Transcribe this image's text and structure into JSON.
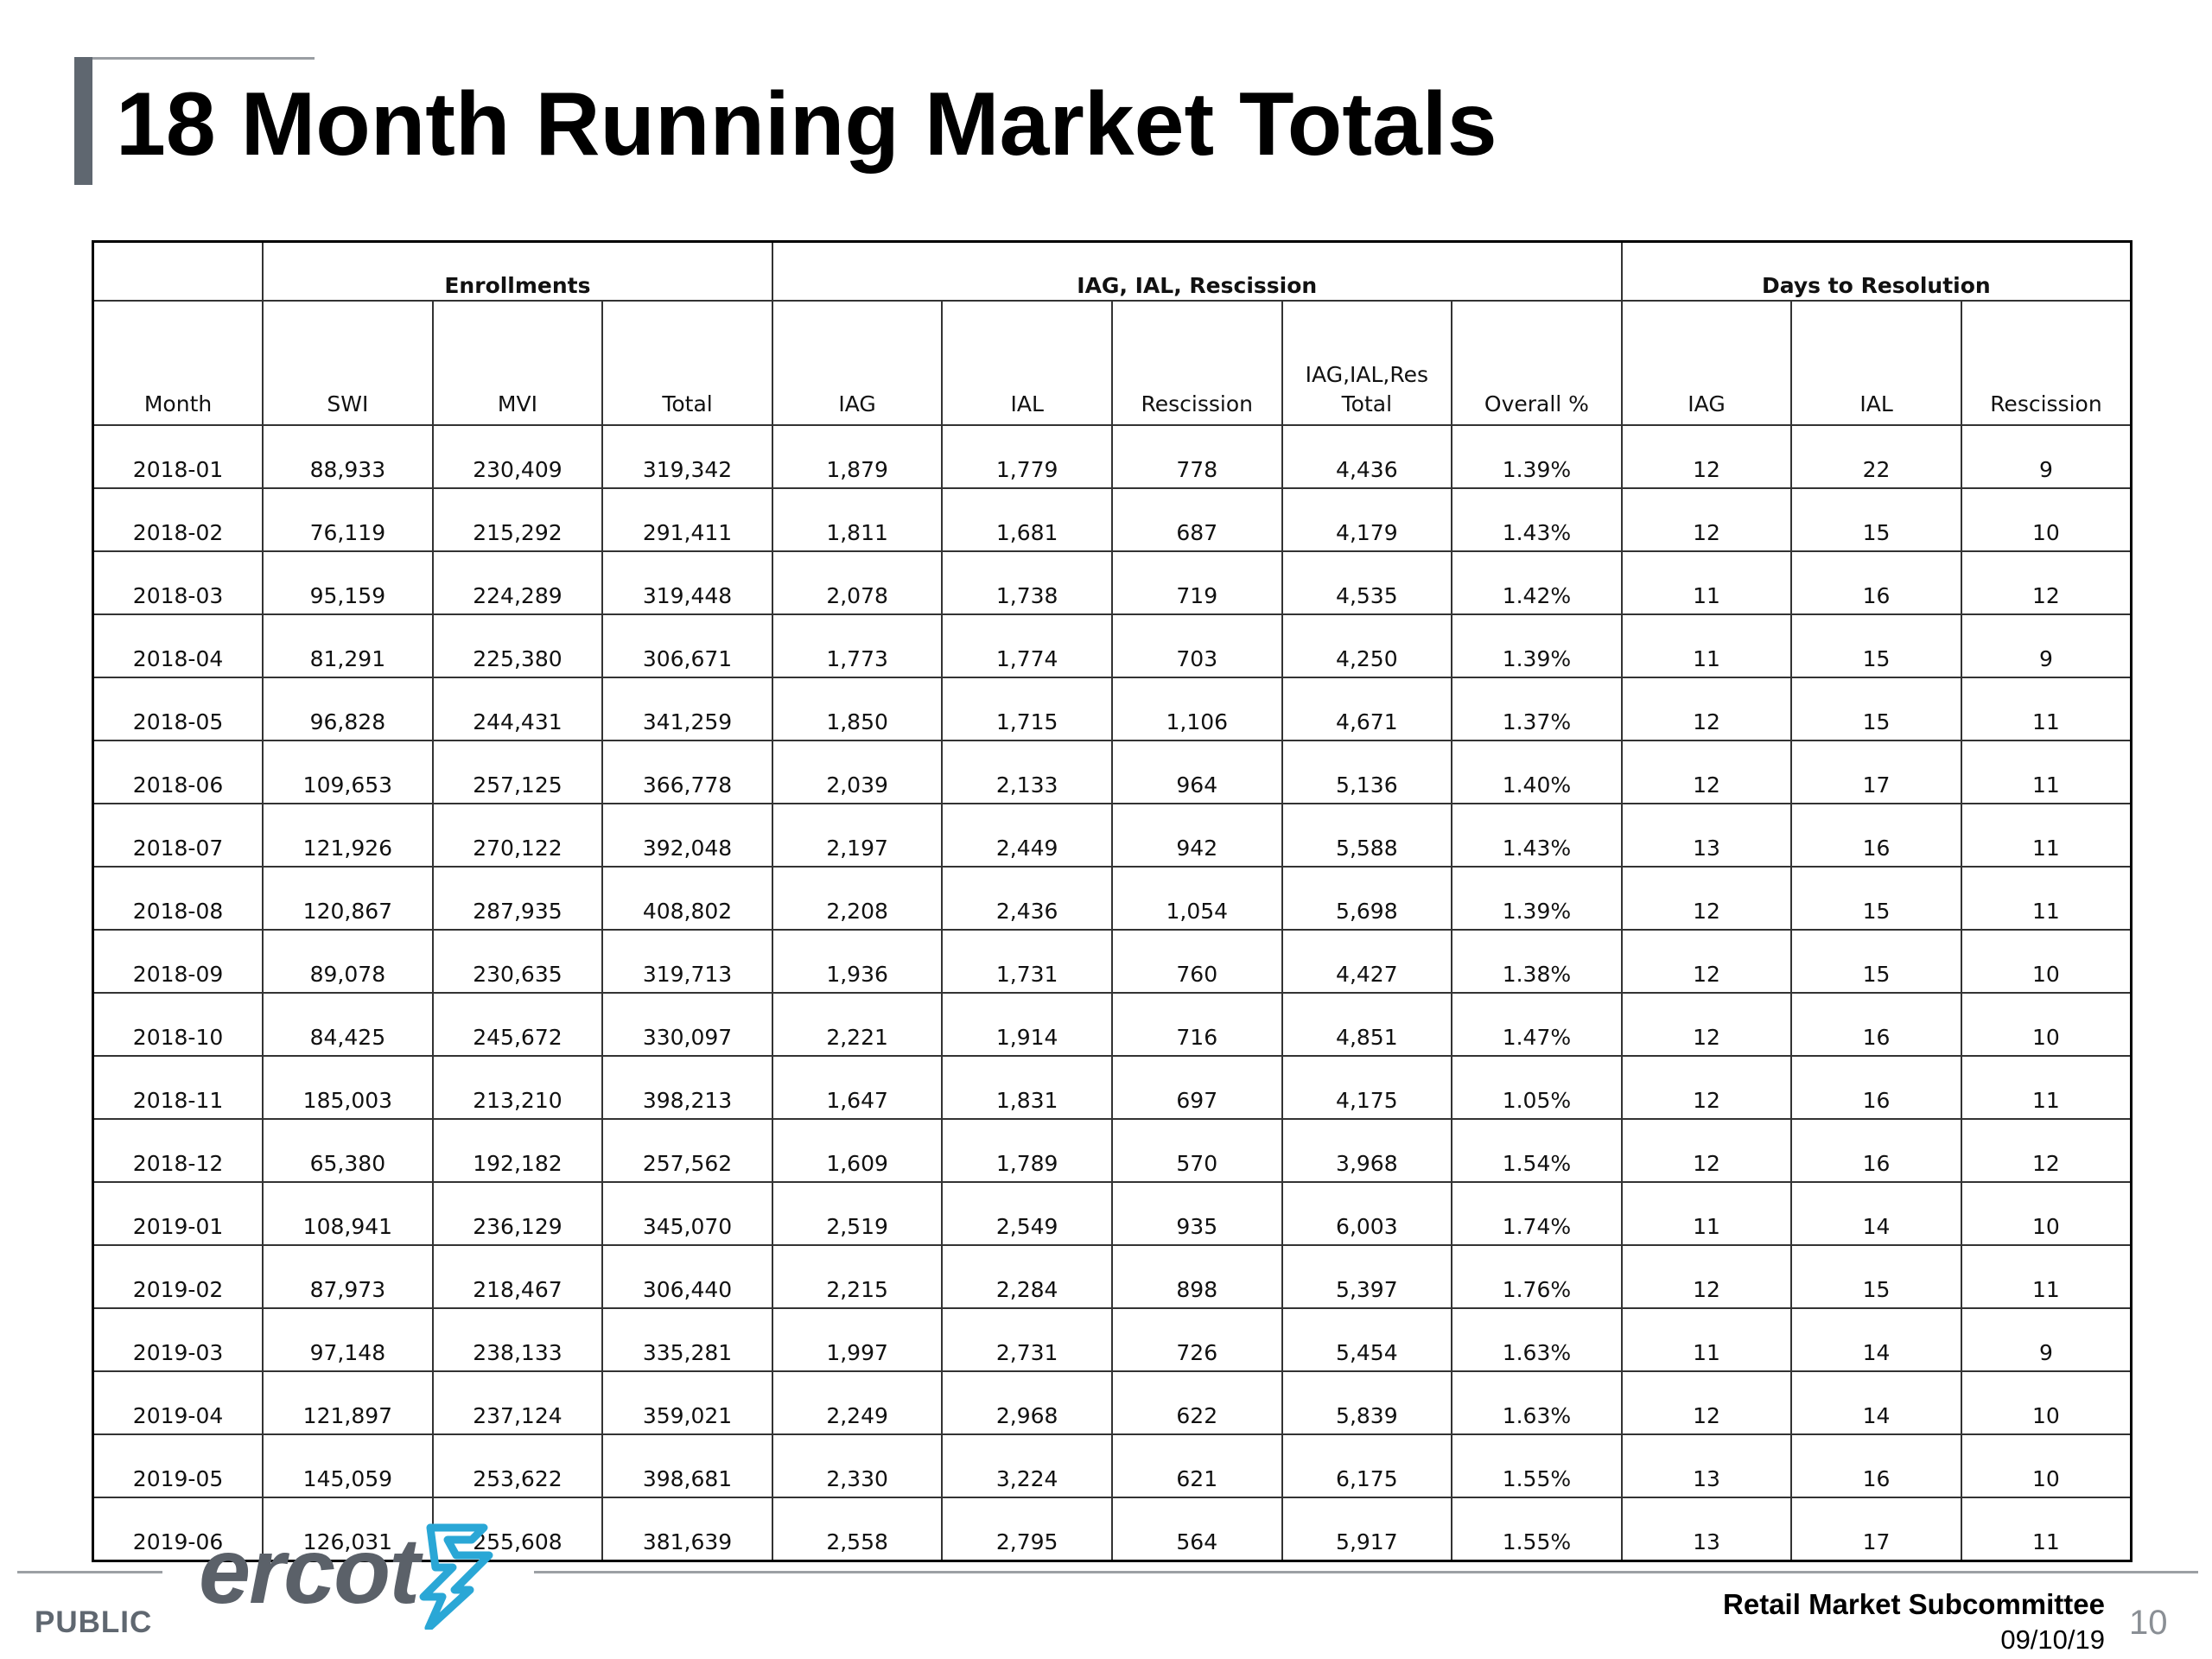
{
  "header": {
    "title": "18 Month Running Market Totals"
  },
  "table": {
    "groups": [
      {
        "label": "",
        "span": 1
      },
      {
        "label": "Enrollments",
        "span": 3
      },
      {
        "label": "IAG, IAL, Rescission",
        "span": 5
      },
      {
        "label": "Days to Resolution",
        "span": 3
      }
    ],
    "columns": [
      "Month",
      "SWI",
      "MVI",
      "Total",
      "IAG",
      "IAL",
      "Rescission",
      "IAG,IAL,Res\nTotal",
      "Overall %",
      "IAG",
      "IAL",
      "Rescission"
    ],
    "rows": [
      [
        "2018-01",
        "88,933",
        "230,409",
        "319,342",
        "1,879",
        "1,779",
        "778",
        "4,436",
        "1.39%",
        "12",
        "22",
        "9"
      ],
      [
        "2018-02",
        "76,119",
        "215,292",
        "291,411",
        "1,811",
        "1,681",
        "687",
        "4,179",
        "1.43%",
        "12",
        "15",
        "10"
      ],
      [
        "2018-03",
        "95,159",
        "224,289",
        "319,448",
        "2,078",
        "1,738",
        "719",
        "4,535",
        "1.42%",
        "11",
        "16",
        "12"
      ],
      [
        "2018-04",
        "81,291",
        "225,380",
        "306,671",
        "1,773",
        "1,774",
        "703",
        "4,250",
        "1.39%",
        "11",
        "15",
        "9"
      ],
      [
        "2018-05",
        "96,828",
        "244,431",
        "341,259",
        "1,850",
        "1,715",
        "1,106",
        "4,671",
        "1.37%",
        "12",
        "15",
        "11"
      ],
      [
        "2018-06",
        "109,653",
        "257,125",
        "366,778",
        "2,039",
        "2,133",
        "964",
        "5,136",
        "1.40%",
        "12",
        "17",
        "11"
      ],
      [
        "2018-07",
        "121,926",
        "270,122",
        "392,048",
        "2,197",
        "2,449",
        "942",
        "5,588",
        "1.43%",
        "13",
        "16",
        "11"
      ],
      [
        "2018-08",
        "120,867",
        "287,935",
        "408,802",
        "2,208",
        "2,436",
        "1,054",
        "5,698",
        "1.39%",
        "12",
        "15",
        "11"
      ],
      [
        "2018-09",
        "89,078",
        "230,635",
        "319,713",
        "1,936",
        "1,731",
        "760",
        "4,427",
        "1.38%",
        "12",
        "15",
        "10"
      ],
      [
        "2018-10",
        "84,425",
        "245,672",
        "330,097",
        "2,221",
        "1,914",
        "716",
        "4,851",
        "1.47%",
        "12",
        "16",
        "10"
      ],
      [
        "2018-11",
        "185,003",
        "213,210",
        "398,213",
        "1,647",
        "1,831",
        "697",
        "4,175",
        "1.05%",
        "12",
        "16",
        "11"
      ],
      [
        "2018-12",
        "65,380",
        "192,182",
        "257,562",
        "1,609",
        "1,789",
        "570",
        "3,968",
        "1.54%",
        "12",
        "16",
        "12"
      ],
      [
        "2019-01",
        "108,941",
        "236,129",
        "345,070",
        "2,519",
        "2,549",
        "935",
        "6,003",
        "1.74%",
        "11",
        "14",
        "10"
      ],
      [
        "2019-02",
        "87,973",
        "218,467",
        "306,440",
        "2,215",
        "2,284",
        "898",
        "5,397",
        "1.76%",
        "12",
        "15",
        "11"
      ],
      [
        "2019-03",
        "97,148",
        "238,133",
        "335,281",
        "1,997",
        "2,731",
        "726",
        "5,454",
        "1.63%",
        "11",
        "14",
        "9"
      ],
      [
        "2019-04",
        "121,897",
        "237,124",
        "359,021",
        "2,249",
        "2,968",
        "622",
        "5,839",
        "1.63%",
        "12",
        "14",
        "10"
      ],
      [
        "2019-05",
        "145,059",
        "253,622",
        "398,681",
        "2,330",
        "3,224",
        "621",
        "6,175",
        "1.55%",
        "13",
        "16",
        "10"
      ],
      [
        "2019-06",
        "126,031",
        "255,608",
        "381,639",
        "2,558",
        "2,795",
        "564",
        "5,917",
        "1.55%",
        "13",
        "17",
        "11"
      ]
    ]
  },
  "footer": {
    "classification": "PUBLIC",
    "logo_text": "ercot",
    "meeting": "Retail Market Subcommittee",
    "date": "09/10/19",
    "page_number": "10"
  },
  "colors": {
    "title_bar": "#5f6770",
    "logo_gray": "#5b6169",
    "logo_accent": "#2aa7d6"
  }
}
